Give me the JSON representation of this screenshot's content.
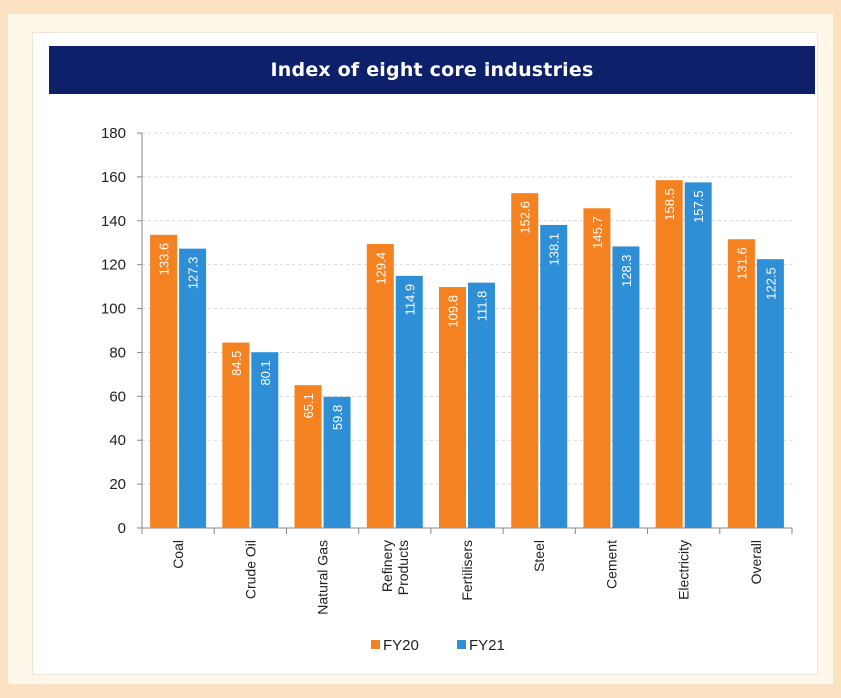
{
  "chart_data": {
    "type": "bar",
    "title": "Index of eight core industries",
    "categories": [
      "Coal",
      "Crude Oil",
      "Natural Gas",
      "Refinery\nProducts",
      "Fertilisers",
      "Steel",
      "Cement",
      "Electricity",
      "Overall"
    ],
    "series": [
      {
        "name": "FY20",
        "color": "#f58220",
        "values": [
          133.6,
          84.5,
          65.1,
          129.4,
          109.8,
          152.6,
          145.7,
          158.5,
          131.6
        ]
      },
      {
        "name": "FY21",
        "color": "#2e8fd6",
        "values": [
          127.3,
          80.1,
          59.8,
          114.9,
          111.8,
          138.1,
          128.3,
          157.5,
          122.5
        ]
      }
    ],
    "ylim": [
      0,
      180
    ],
    "yticks": [
      0,
      20,
      40,
      60,
      80,
      100,
      120,
      140,
      160,
      180
    ],
    "grid": true,
    "legend": "bottom"
  }
}
